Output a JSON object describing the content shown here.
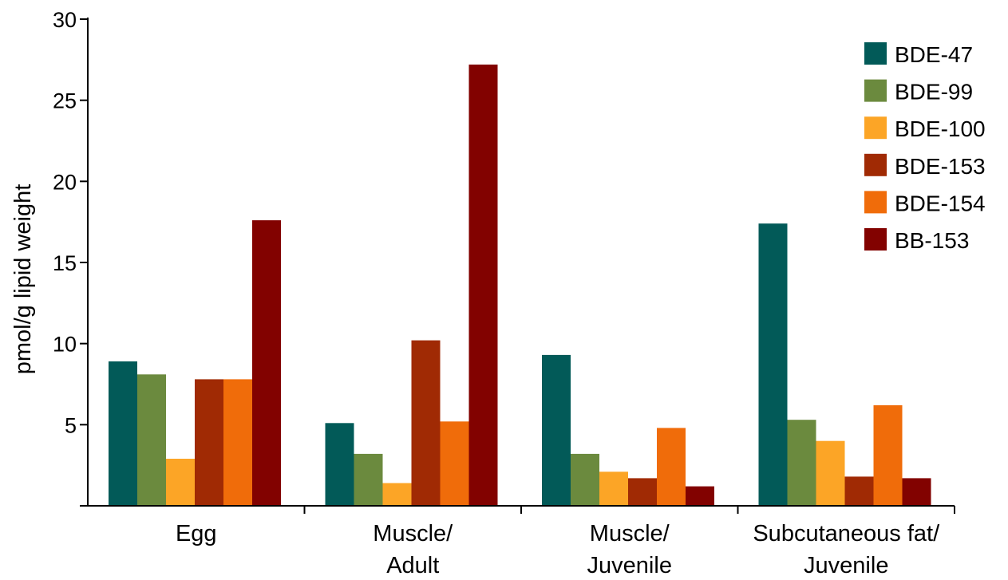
{
  "chart_data": {
    "type": "bar",
    "title": "",
    "xlabel": "",
    "ylabel": "pmol/g lipid weight",
    "ylim": [
      0,
      30
    ],
    "yticks": [
      5,
      10,
      15,
      20,
      25,
      30
    ],
    "grid": false,
    "legend_position": "top-right",
    "categories": [
      [
        "Egg"
      ],
      [
        "Muscle/",
        "Adult"
      ],
      [
        "Muscle/",
        "Juvenile"
      ],
      [
        "Subcutaneous fat/",
        "Juvenile"
      ]
    ],
    "series": [
      {
        "name": "BDE-47",
        "color": "#025a58",
        "values": [
          8.9,
          5.1,
          9.3,
          17.4
        ]
      },
      {
        "name": "BDE-99",
        "color": "#6b8a3e",
        "values": [
          8.1,
          3.2,
          3.2,
          5.3
        ]
      },
      {
        "name": "BDE-100",
        "color": "#fca526",
        "values": [
          2.9,
          1.4,
          2.1,
          4.0
        ]
      },
      {
        "name": "BDE-153",
        "color": "#a02a04",
        "values": [
          7.8,
          10.2,
          1.7,
          1.8
        ]
      },
      {
        "name": "BDE-154",
        "color": "#f06c0a",
        "values": [
          7.8,
          5.2,
          4.8,
          6.2
        ]
      },
      {
        "name": "BB-153",
        "color": "#820200",
        "values": [
          17.6,
          27.2,
          1.2,
          1.7
        ]
      }
    ]
  }
}
